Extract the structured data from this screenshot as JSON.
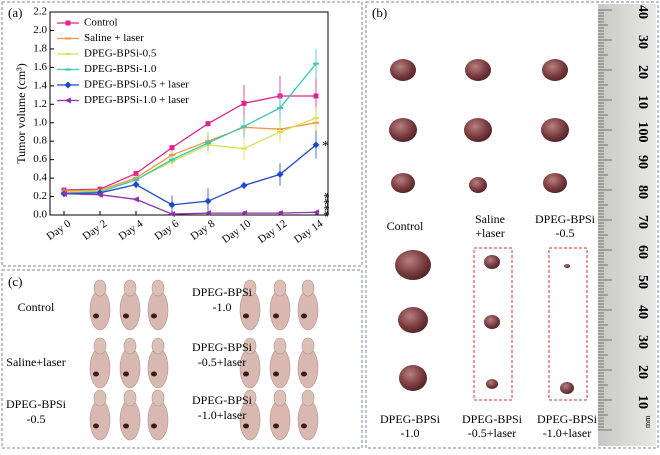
{
  "chart_data": {
    "type": "line",
    "panel": "(a)",
    "ylabel": "Tumor volume (cm³)",
    "categories": [
      "Day 0",
      "Day 2",
      "Day 4",
      "Day 6",
      "Day 8",
      "Day 10",
      "Day 12",
      "Day 14"
    ],
    "ylim": [
      0,
      2.2
    ],
    "yticks": [
      {
        "value": 0,
        "label": "0.0"
      },
      0.2,
      0.4,
      0.6,
      0.8,
      {
        "value": 1,
        "label": "1.0"
      },
      1.2,
      1.4,
      1.6,
      1.8,
      {
        "value": 2,
        "label": "2.0"
      },
      2.2
    ],
    "series": [
      {
        "name": "Control",
        "color": "#e0248c",
        "marker": "square",
        "values": [
          0.27,
          0.28,
          0.45,
          0.73,
          0.99,
          1.21,
          1.29,
          1.29
        ],
        "errors": [
          0.03,
          0.03,
          0.03,
          0.03,
          0.03,
          0.2,
          0.22,
          0.2
        ]
      },
      {
        "name": "Saline + laser",
        "color": "#f0963c",
        "marker": "dash",
        "values": [
          0.26,
          0.27,
          0.4,
          0.65,
          0.8,
          0.95,
          0.93,
          1.0
        ],
        "errors": [
          0.03,
          0.03,
          0.04,
          0.05,
          0.1,
          0.1,
          0.1,
          0.1
        ]
      },
      {
        "name": "DPEG-BPSi-0.5",
        "color": "#d8e050",
        "marker": "dash",
        "values": [
          0.25,
          0.26,
          0.38,
          0.58,
          0.76,
          0.72,
          0.9,
          1.05
        ],
        "errors": [
          0.03,
          0.03,
          0.04,
          0.06,
          0.1,
          0.12,
          0.12,
          0.12
        ]
      },
      {
        "name": "DPEG-BPSi-1.0",
        "color": "#3cc8b4",
        "marker": "dash",
        "values": [
          0.24,
          0.25,
          0.38,
          0.6,
          0.78,
          0.96,
          1.16,
          1.64
        ],
        "errors": [
          0.03,
          0.03,
          0.04,
          0.05,
          0.08,
          0.12,
          0.14,
          0.16
        ]
      },
      {
        "name": "DPEG-BPSi-0.5 + laser",
        "color": "#2048c8",
        "marker": "diamond",
        "values": [
          0.23,
          0.24,
          0.33,
          0.11,
          0.15,
          0.32,
          0.44,
          0.76
        ],
        "errors": [
          0.03,
          0.05,
          0.04,
          0.1,
          0.14,
          0.04,
          0.12,
          0.15
        ]
      },
      {
        "name": "DPEG-BPSi-1.0 + laser",
        "color": "#9030b0",
        "marker": "triangle",
        "values": [
          0.23,
          0.22,
          0.17,
          0.01,
          0.02,
          0.02,
          0.02,
          0.03
        ],
        "errors": [
          0.02,
          0.02,
          0.02,
          0.01,
          0.01,
          0.01,
          0.01,
          0.01
        ]
      }
    ],
    "annotations": [
      "*",
      "****"
    ]
  },
  "panel_b": {
    "label": "(b)",
    "top_labels": [
      [
        "Control"
      ],
      [
        "Saline",
        "+laser"
      ],
      [
        "DPEG-BPSi",
        "-0.5"
      ]
    ],
    "bottom_labels": [
      [
        "DPEG-BPSi",
        "-1.0"
      ],
      [
        "DPEG-BPSi",
        "-0.5+laser"
      ],
      [
        "DPEG-BPSi",
        "-1.0+laser"
      ]
    ],
    "ruler_labels": [
      "40",
      "30",
      "20",
      "10",
      "100",
      "90",
      "80",
      "70",
      "60",
      "50",
      "40",
      "30",
      "20",
      "10"
    ],
    "ruler_unit": "mm"
  },
  "panel_c": {
    "label": "(c)",
    "labels": [
      [
        "Control"
      ],
      [
        "Saline+laser"
      ],
      [
        "DPEG-BPSi",
        "-0.5"
      ],
      [
        "DPEG-BPSi",
        "-1.0"
      ],
      [
        "DPEG-BPSi",
        "-0.5+laser"
      ],
      [
        "DPEG-BPSi",
        "-1.0+laser"
      ]
    ]
  }
}
